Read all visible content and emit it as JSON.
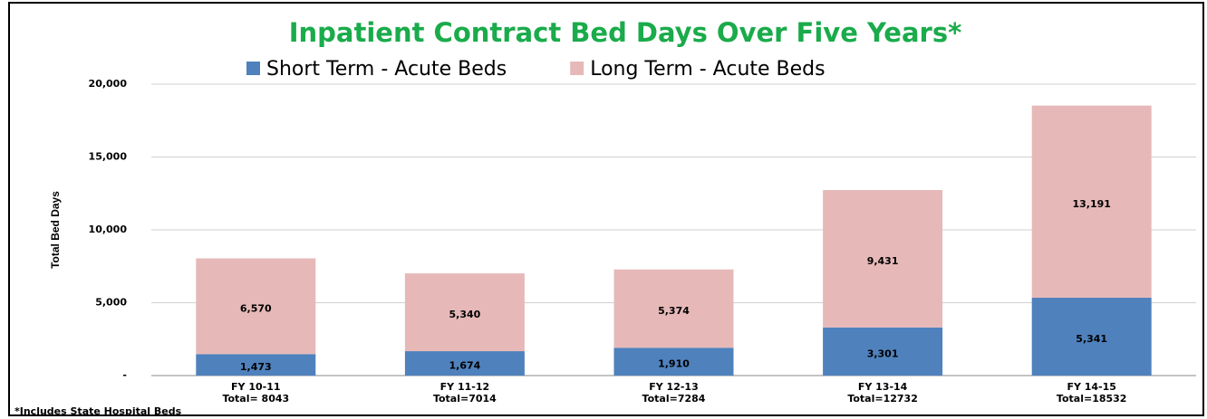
{
  "chart_data": {
    "type": "stacked_bar",
    "title": "Inpatient Contract Bed Days Over Five Years*",
    "y_label": "Total Bed Days",
    "footnote": "*Includes State Hospital Beds",
    "categories": [
      "FY 10-11",
      "FY 11-12",
      "FY 12-13",
      "FY 13-14",
      "FY 14-15"
    ],
    "category_totals": [
      "Total= 8043",
      "Total=7014",
      "Total=7284",
      "Total=12732",
      "Total=18532"
    ],
    "series": [
      {
        "name": "Short Term - Acute Beds",
        "color": "#4f81bd",
        "values": [
          1473,
          1674,
          1910,
          3301,
          5341
        ],
        "value_labels": [
          "1,473",
          "1,674",
          "1,910",
          "3,301",
          "5,341"
        ]
      },
      {
        "name": "Long Term - Acute Beds",
        "color": "#e6b9b8",
        "values": [
          6570,
          5340,
          5374,
          9431,
          13191
        ],
        "value_labels": [
          "6,570",
          "5,340",
          "5,374",
          "9,431",
          "13,191"
        ]
      }
    ],
    "ylim": [
      0,
      20000
    ],
    "yticks": [
      {
        "value": 0,
        "label": "-"
      },
      {
        "value": 5000,
        "label": "5,000"
      },
      {
        "value": 10000,
        "label": "10,000"
      },
      {
        "value": 15000,
        "label": "15,000"
      },
      {
        "value": 20000,
        "label": "20,000"
      }
    ],
    "grid": true,
    "legend": "top"
  }
}
